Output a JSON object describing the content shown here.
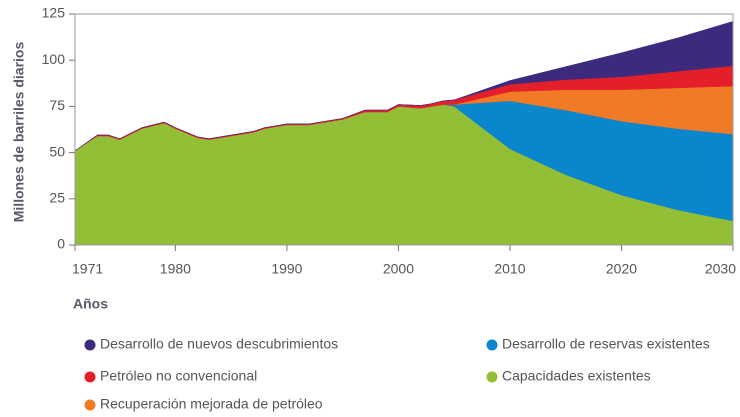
{
  "chart_data": {
    "type": "stacked_area",
    "xlabel": "Años",
    "ylabel": "Millones de barriles diarios",
    "x": [
      1971,
      1973,
      1974,
      1975,
      1977,
      1979,
      1980,
      1982,
      1983,
      1985,
      1987,
      1988,
      1990,
      1992,
      1994,
      1995,
      1997,
      1999,
      2000,
      2002,
      2003,
      2004,
      2005,
      2010,
      2015,
      2020,
      2025,
      2030
    ],
    "xlim": [
      1971,
      2030
    ],
    "xticks": [
      1971,
      1980,
      1990,
      2000,
      2010,
      2020,
      2030
    ],
    "ylim": [
      0,
      125
    ],
    "yticks": [
      0,
      25,
      50,
      75,
      100,
      125
    ],
    "series": [
      {
        "name": "Capacidades existentes",
        "color": "#93bf36",
        "values": [
          51,
          59,
          59,
          57,
          63,
          66,
          63,
          58,
          57,
          59,
          61,
          63,
          65,
          65,
          67,
          68,
          72,
          72,
          75,
          74,
          75,
          76,
          75,
          52,
          38,
          27,
          19,
          13
        ]
      },
      {
        "name": "Desarrollo de reservas existentes",
        "color": "#0a86cc",
        "values": [
          0,
          0,
          0,
          0,
          0,
          0,
          0,
          0,
          0,
          0,
          0,
          0,
          0,
          0,
          0,
          0,
          0,
          0,
          0,
          0,
          0,
          0,
          1,
          26,
          35,
          40,
          44,
          47
        ]
      },
      {
        "name": "Recuperación mejorada de petróleo",
        "color": "#f07a26",
        "values": [
          0,
          0,
          0,
          0,
          0,
          0,
          0,
          0,
          0,
          0,
          0,
          0,
          0,
          0,
          0,
          0,
          0,
          0,
          0,
          0,
          0,
          0,
          0,
          5,
          11,
          17,
          22,
          26
        ]
      },
      {
        "name": "Petróleo no convencional",
        "color": "#e3202a",
        "values": [
          0,
          0.5,
          0.5,
          0.5,
          0.5,
          0.5,
          0.5,
          0.5,
          0.5,
          0.5,
          0.5,
          0.5,
          0.5,
          0.5,
          0.5,
          0.5,
          1,
          1,
          1,
          1.5,
          1.5,
          2,
          2.5,
          4,
          5.5,
          7,
          9,
          11
        ]
      },
      {
        "name": "Desarrollo de nuevos descubrimientos",
        "color": "#3d2a7e",
        "values": [
          0,
          0,
          0,
          0,
          0,
          0,
          0,
          0,
          0,
          0,
          0,
          0,
          0,
          0,
          0,
          0,
          0,
          0,
          0,
          0,
          0,
          0,
          0,
          2,
          7,
          13,
          18,
          24
        ]
      }
    ]
  }
}
